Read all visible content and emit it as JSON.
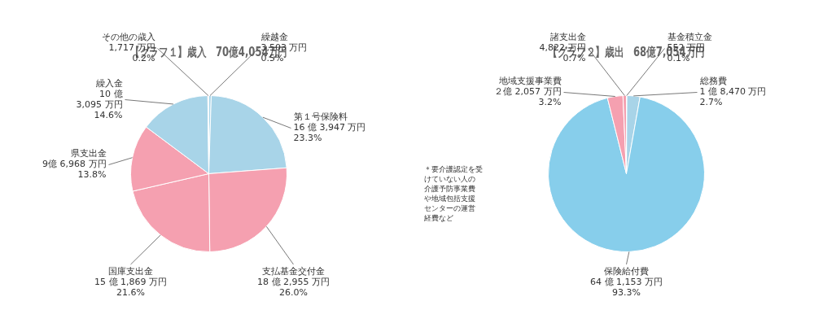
{
  "chart_data": [
    {
      "type": "pie",
      "title": "【グラフ１】歳入　70億4,054万円",
      "categories": [
        "繰越金",
        "第１号保険料",
        "支払基金交付金",
        "国庫支出金",
        "県支出金",
        "繰入金",
        "その他の歳入"
      ],
      "values": [
        0.5,
        23.3,
        26.0,
        21.6,
        13.8,
        14.6,
        0.2
      ],
      "value_labels": [
        "0.5%",
        "23.3%",
        "26.0%",
        "21.6%",
        "13.8%",
        "14.6%",
        "0.2%"
      ],
      "amounts": [
        "3,503 万円",
        "16 億 3,947 万円",
        "18 億 2,955 万円",
        "15 億 1,869 万円",
        "9億 6,968 万円",
        "10 億\n3,095 万円",
        "1,717 万円"
      ],
      "colors": [
        "#a8d4e8",
        "#a8d4e8",
        "#f5a0b0",
        "#f5a0b0",
        "#f5a0b0",
        "#a8d4e8",
        "#f5a0b0"
      ],
      "data_labels": true
    },
    {
      "type": "pie",
      "title": "【グラフ２】歳出　68億7,054万円",
      "categories": [
        "基金積立金",
        "総務費",
        "保険給付費",
        "地域支援事業費",
        "諸支出金"
      ],
      "values": [
        0.1,
        2.7,
        93.3,
        3.2,
        0.7
      ],
      "value_labels": [
        "0.1%",
        "2.7%",
        "93.3%",
        "3.2%",
        "0.7%"
      ],
      "amounts": [
        "552 万円",
        "1 億 8,470 万円",
        "64 億 1,153 万円",
        "２億 2,057 万円",
        "4,822 万円"
      ],
      "colors": [
        "#a8d4e8",
        "#a8d4e8",
        "#87ceeb",
        "#f5a0b0",
        "#f5a0b0"
      ],
      "data_labels": true,
      "annotations": [
        "＊要介護認定を受\nけていない人の\n介護予防事業費\nや地域包括支援\nセンターの運営\n経費など"
      ]
    }
  ]
}
